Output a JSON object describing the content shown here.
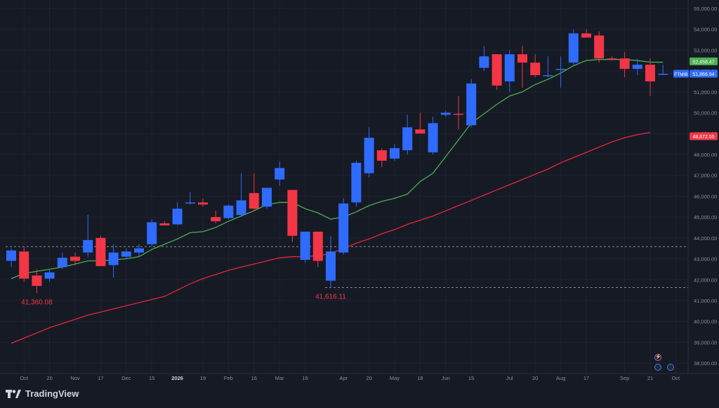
{
  "brand": {
    "name": "TradingView"
  },
  "colors": {
    "background": "#161a25",
    "up": "#2f6bff",
    "down": "#f23645",
    "ma_short": "#4caf50",
    "ma_long": "#e3283a",
    "grid": "#1f2330",
    "axis_text": "#8a8e99",
    "dashed": "#8a8e99"
  },
  "chart_data": {
    "type": "candlestick",
    "symbol": "FTMIB",
    "ylim": [
      37500,
      55400
    ],
    "yticks": [
      "38,000.00",
      "39,000.00",
      "40,000.00",
      "41,000.00",
      "42,000.00",
      "43,000.00",
      "44,000.00",
      "45,000.00",
      "46,000.00",
      "47,000.00",
      "48,000.00",
      "49,000.00",
      "50,000.00",
      "51,000.00",
      "52,000.00",
      "53,000.00",
      "54,000.00",
      "55,000.00"
    ],
    "ytick_values": [
      38000,
      39000,
      40000,
      41000,
      42000,
      43000,
      44000,
      45000,
      46000,
      47000,
      48000,
      49000,
      50000,
      51000,
      52000,
      53000,
      54000,
      55000
    ],
    "xticks": [
      {
        "label": "Oct",
        "index": 1
      },
      {
        "label": "20",
        "index": 3
      },
      {
        "label": "Nov",
        "index": 5
      },
      {
        "label": "17",
        "index": 7
      },
      {
        "label": "Dec",
        "index": 9
      },
      {
        "label": "15",
        "index": 11
      },
      {
        "label": "2026",
        "index": 13
      },
      {
        "label": "19",
        "index": 15
      },
      {
        "label": "Feb",
        "index": 17
      },
      {
        "label": "16",
        "index": 19
      },
      {
        "label": "Mar",
        "index": 21
      },
      {
        "label": "16",
        "index": 23
      },
      {
        "label": "Apr",
        "index": 26
      },
      {
        "label": "20",
        "index": 28
      },
      {
        "label": "May",
        "index": 30
      },
      {
        "label": "18",
        "index": 32
      },
      {
        "label": "Jun",
        "index": 34
      },
      {
        "label": "15",
        "index": 36
      },
      {
        "label": "Jul",
        "index": 39
      },
      {
        "label": "20",
        "index": 41
      },
      {
        "label": "Aug",
        "index": 43
      },
      {
        "label": "17",
        "index": 45
      },
      {
        "label": "Sep",
        "index": 48
      },
      {
        "label": "21",
        "index": 50
      },
      {
        "label": "Oct",
        "index": 52
      }
    ],
    "candles": [
      {
        "o": 42900,
        "h": 43500,
        "l": 42600,
        "c": 43400
      },
      {
        "o": 43350,
        "h": 43600,
        "l": 41900,
        "c": 42050
      },
      {
        "o": 42200,
        "h": 42500,
        "l": 41360,
        "c": 41700
      },
      {
        "o": 42050,
        "h": 42450,
        "l": 41900,
        "c": 42350
      },
      {
        "o": 42600,
        "h": 43300,
        "l": 42500,
        "c": 43050
      },
      {
        "o": 43100,
        "h": 43300,
        "l": 42700,
        "c": 42900
      },
      {
        "o": 43300,
        "h": 45100,
        "l": 43100,
        "c": 43900
      },
      {
        "o": 44000,
        "h": 44100,
        "l": 42700,
        "c": 42650
      },
      {
        "o": 42700,
        "h": 43700,
        "l": 42100,
        "c": 43300
      },
      {
        "o": 43100,
        "h": 43500,
        "l": 43000,
        "c": 43350
      },
      {
        "o": 43300,
        "h": 43700,
        "l": 43100,
        "c": 43500
      },
      {
        "o": 43700,
        "h": 44900,
        "l": 43600,
        "c": 44750
      },
      {
        "o": 44700,
        "h": 44800,
        "l": 44600,
        "c": 44600
      },
      {
        "o": 44650,
        "h": 45700,
        "l": 44600,
        "c": 45400
      },
      {
        "o": 45650,
        "h": 46200,
        "l": 45600,
        "c": 45700
      },
      {
        "o": 45700,
        "h": 45900,
        "l": 45500,
        "c": 45600
      },
      {
        "o": 45000,
        "h": 45300,
        "l": 44700,
        "c": 44800
      },
      {
        "o": 44950,
        "h": 45600,
        "l": 44900,
        "c": 45550
      },
      {
        "o": 45100,
        "h": 47100,
        "l": 45000,
        "c": 45800
      },
      {
        "o": 46150,
        "h": 47100,
        "l": 45300,
        "c": 45400
      },
      {
        "o": 45500,
        "h": 46400,
        "l": 45400,
        "c": 46400
      },
      {
        "o": 46800,
        "h": 47650,
        "l": 46500,
        "c": 47350
      },
      {
        "o": 46300,
        "h": 46300,
        "l": 43800,
        "c": 44100
      },
      {
        "o": 42950,
        "h": 44300,
        "l": 42800,
        "c": 44300
      },
      {
        "o": 44300,
        "h": 44300,
        "l": 42600,
        "c": 42900
      },
      {
        "o": 41950,
        "h": 44100,
        "l": 41616,
        "c": 43350
      },
      {
        "o": 43300,
        "h": 45900,
        "l": 43200,
        "c": 45650
      },
      {
        "o": 45700,
        "h": 47700,
        "l": 45500,
        "c": 47600
      },
      {
        "o": 47100,
        "h": 49300,
        "l": 46900,
        "c": 48800
      },
      {
        "o": 48200,
        "h": 48300,
        "l": 47400,
        "c": 47700
      },
      {
        "o": 47800,
        "h": 48500,
        "l": 47700,
        "c": 48300
      },
      {
        "o": 48200,
        "h": 49900,
        "l": 48000,
        "c": 49300
      },
      {
        "o": 49200,
        "h": 50000,
        "l": 49100,
        "c": 49000
      },
      {
        "o": 48100,
        "h": 49800,
        "l": 48000,
        "c": 49500
      },
      {
        "o": 49900,
        "h": 50100,
        "l": 49800,
        "c": 50000
      },
      {
        "o": 49950,
        "h": 50800,
        "l": 49200,
        "c": 49900
      },
      {
        "o": 49400,
        "h": 51600,
        "l": 49300,
        "c": 51400
      },
      {
        "o": 52150,
        "h": 53200,
        "l": 52000,
        "c": 52700
      },
      {
        "o": 52800,
        "h": 52800,
        "l": 51100,
        "c": 51300
      },
      {
        "o": 51500,
        "h": 53000,
        "l": 51000,
        "c": 52800
      },
      {
        "o": 52800,
        "h": 53200,
        "l": 51200,
        "c": 52400
      },
      {
        "o": 52400,
        "h": 52800,
        "l": 51700,
        "c": 51800
      },
      {
        "o": 51800,
        "h": 52700,
        "l": 51700,
        "c": 51800
      },
      {
        "o": 52100,
        "h": 52700,
        "l": 51200,
        "c": 52100
      },
      {
        "o": 52400,
        "h": 54000,
        "l": 52300,
        "c": 53800
      },
      {
        "o": 53800,
        "h": 54000,
        "l": 53600,
        "c": 53600
      },
      {
        "o": 53700,
        "h": 53900,
        "l": 52400,
        "c": 52600
      },
      {
        "o": 52600,
        "h": 52700,
        "l": 52500,
        "c": 52550
      },
      {
        "o": 52600,
        "h": 52900,
        "l": 51700,
        "c": 52100
      },
      {
        "o": 52100,
        "h": 52600,
        "l": 51800,
        "c": 52300
      },
      {
        "o": 52300,
        "h": 52600,
        "l": 50800,
        "c": 51500
      },
      {
        "o": 51850,
        "h": 52300,
        "l": 51800,
        "c": 51867
      }
    ],
    "ma_short": [
      [
        0,
        42050
      ],
      [
        1,
        42300
      ],
      [
        2,
        42400
      ],
      [
        3,
        42500
      ],
      [
        4,
        42600
      ],
      [
        5,
        42750
      ],
      [
        6,
        42900
      ],
      [
        7,
        42900
      ],
      [
        8,
        42950
      ],
      [
        9,
        43000
      ],
      [
        10,
        43100
      ],
      [
        11,
        43450
      ],
      [
        12,
        43700
      ],
      [
        13,
        43950
      ],
      [
        14,
        44250
      ],
      [
        15,
        44300
      ],
      [
        16,
        44500
      ],
      [
        17,
        44800
      ],
      [
        18,
        45050
      ],
      [
        19,
        45300
      ],
      [
        20,
        45600
      ],
      [
        21,
        45700
      ],
      [
        22,
        45700
      ],
      [
        23,
        45400
      ],
      [
        24,
        45200
      ],
      [
        25,
        44900
      ],
      [
        26,
        45000
      ],
      [
        27,
        45250
      ],
      [
        28,
        45550
      ],
      [
        29,
        45750
      ],
      [
        30,
        45900
      ],
      [
        31,
        46100
      ],
      [
        32,
        46700
      ],
      [
        33,
        47100
      ],
      [
        34,
        47900
      ],
      [
        35,
        48700
      ],
      [
        36,
        49500
      ],
      [
        37,
        49950
      ],
      [
        38,
        50400
      ],
      [
        39,
        50800
      ],
      [
        40,
        51000
      ],
      [
        41,
        51350
      ],
      [
        42,
        51600
      ],
      [
        43,
        51900
      ],
      [
        44,
        52250
      ],
      [
        45,
        52500
      ],
      [
        46,
        52550
      ],
      [
        47,
        52550
      ],
      [
        48,
        52550
      ],
      [
        49,
        52500
      ],
      [
        50,
        52420
      ],
      [
        51,
        52420
      ]
    ],
    "ma_long": [
      [
        0,
        38950
      ],
      [
        1,
        39200
      ],
      [
        2,
        39450
      ],
      [
        3,
        39700
      ],
      [
        4,
        39900
      ],
      [
        5,
        40100
      ],
      [
        6,
        40300
      ],
      [
        7,
        40450
      ],
      [
        8,
        40600
      ],
      [
        9,
        40750
      ],
      [
        10,
        40900
      ],
      [
        11,
        41050
      ],
      [
        12,
        41200
      ],
      [
        13,
        41500
      ],
      [
        14,
        41800
      ],
      [
        15,
        42050
      ],
      [
        16,
        42250
      ],
      [
        17,
        42450
      ],
      [
        18,
        42600
      ],
      [
        19,
        42750
      ],
      [
        20,
        42900
      ],
      [
        21,
        43050
      ],
      [
        22,
        43100
      ],
      [
        23,
        43100
      ],
      [
        24,
        43150
      ],
      [
        25,
        43250
      ],
      [
        26,
        43500
      ],
      [
        27,
        43750
      ],
      [
        28,
        43950
      ],
      [
        29,
        44200
      ],
      [
        30,
        44400
      ],
      [
        31,
        44650
      ],
      [
        32,
        44850
      ],
      [
        33,
        45050
      ],
      [
        34,
        45300
      ],
      [
        35,
        45550
      ],
      [
        36,
        45800
      ],
      [
        37,
        46050
      ],
      [
        38,
        46300
      ],
      [
        39,
        46550
      ],
      [
        40,
        46800
      ],
      [
        41,
        47050
      ],
      [
        42,
        47300
      ],
      [
        43,
        47600
      ],
      [
        44,
        47850
      ],
      [
        45,
        48100
      ],
      [
        46,
        48350
      ],
      [
        47,
        48600
      ],
      [
        48,
        48800
      ],
      [
        49,
        48950
      ],
      [
        50,
        49050
      ]
    ],
    "annotations": [
      {
        "text": "41,360.08",
        "index": 2,
        "value": 41360.08,
        "color": "#f23645"
      },
      {
        "text": "41,616.11",
        "index": 25,
        "value": 41616.11,
        "color": "#f23645"
      }
    ],
    "dashed_levels": [
      {
        "value": 43580,
        "from_index": 0
      },
      {
        "value": 41620,
        "from_index": 25
      }
    ],
    "price_labels": [
      {
        "text": "52,458.47",
        "value": 52458.47,
        "color": "#4caf50"
      },
      {
        "text": "51,866.94",
        "value": 51866.94,
        "color": "#2f6bff",
        "symbol": "FTMIB"
      },
      {
        "text": "48,872.55",
        "value": 48872.55,
        "color": "#f23645"
      }
    ]
  }
}
